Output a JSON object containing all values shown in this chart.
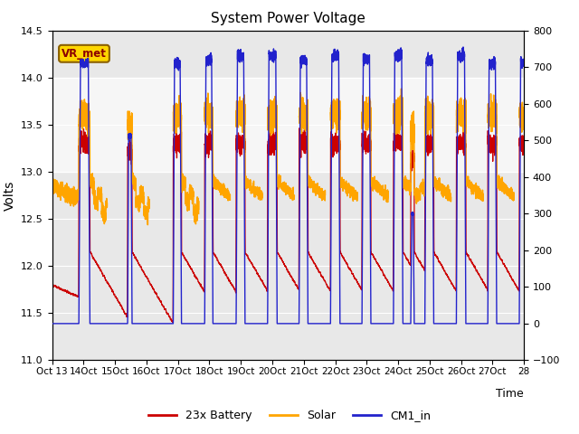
{
  "title": "System Power Voltage",
  "xlabel": "Time",
  "ylabel_left": "Volts",
  "ylim_left": [
    11.0,
    14.5
  ],
  "ylim_right": [
    -100,
    800
  ],
  "xtick_labels": [
    "Oct 13",
    "14Oct",
    "15Oct",
    "16Oct",
    "17Oct",
    "18Oct",
    "19Oct",
    "20Oct",
    "21Oct",
    "22Oct",
    "23Oct",
    "24Oct",
    "25Oct",
    "26Oct",
    "27Oct",
    "28"
  ],
  "shaded_band": [
    13.0,
    14.0
  ],
  "annotation_text": "VR_met",
  "annotation_fg": "#8B0000",
  "annotation_bg": "#FFD700",
  "annotation_edge": "#8B6000",
  "color_battery": "#CC0000",
  "color_solar": "#FFA500",
  "color_cm1": "#2222CC",
  "legend_entries": [
    "23x Battery",
    "Solar",
    "CM1_in"
  ],
  "fig_bg": "#ffffff",
  "plot_bg": "#e8e8e8"
}
